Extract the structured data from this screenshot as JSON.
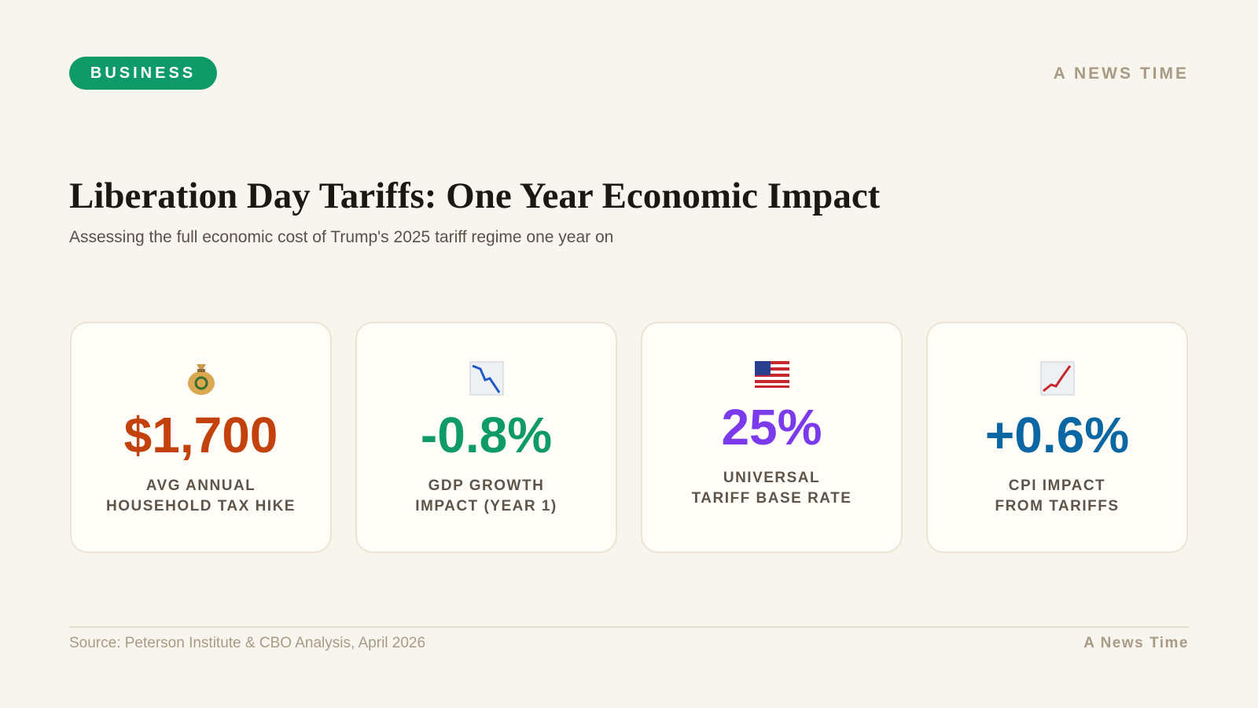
{
  "header": {
    "badge": "BUSINESS",
    "brand": "A NEWS TIME"
  },
  "title": "Liberation Day Tariffs: One Year Economic Impact",
  "subtitle": "Assessing the full economic cost of Trump's 2025 tariff regime one year on",
  "stats": [
    {
      "value": "$1,700",
      "color": "#c2410c",
      "label": [
        "AVG ANNUAL",
        "HOUSEHOLD TAX HIKE"
      ]
    },
    {
      "value": "-0.8%",
      "color": "#0f9a6a",
      "label": [
        "GDP GROWTH",
        "IMPACT (YEAR 1)"
      ]
    },
    {
      "value": "25%",
      "color": "#7c3aed",
      "label": [
        "UNIVERSAL",
        "TARIFF BASE RATE"
      ]
    },
    {
      "value": "+0.6%",
      "color": "#0b67a3",
      "label": [
        "CPI IMPACT",
        "FROM TARIFFS"
      ]
    }
  ],
  "footer": {
    "source": "Source: Peterson Institute & CBO Analysis, April 2026",
    "brand": "A News Time"
  }
}
